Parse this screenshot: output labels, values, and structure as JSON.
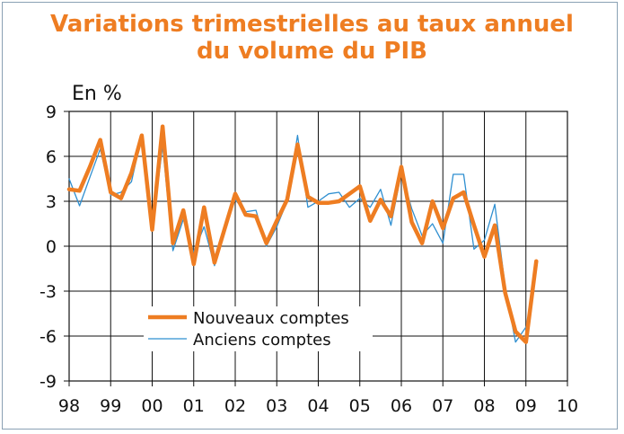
{
  "chart_data": {
    "type": "line",
    "title": [
      "Variations trimestrielles au taux annuel",
      "du volume du PIB"
    ],
    "unit": "En %",
    "ylim": [
      -9,
      9
    ],
    "yticks": [
      9,
      6,
      3,
      0,
      -3,
      -6,
      -9
    ],
    "ytick_labels": [
      "9",
      "6",
      "3",
      "0",
      "-3",
      "-6",
      "-9"
    ],
    "xlim": [
      1998,
      2010
    ],
    "xticks": [
      1998,
      1999,
      2000,
      2001,
      2002,
      2003,
      2004,
      2005,
      2006,
      2007,
      2008,
      2009,
      2010
    ],
    "xtick_labels": [
      "98",
      "99",
      "00",
      "01",
      "02",
      "03",
      "04",
      "05",
      "06",
      "07",
      "08",
      "09",
      "10"
    ],
    "grid": true,
    "legend_placement": "bottom-center",
    "series": [
      {
        "name": "Nouveaux comptes",
        "color": "#ee7d22",
        "x": [
          1998.0,
          1998.25,
          1998.5,
          1998.75,
          1999.0,
          1999.25,
          1999.5,
          1999.75,
          2000.0,
          2000.25,
          2000.5,
          2000.75,
          2001.0,
          2001.25,
          2001.5,
          2001.75,
          2002.0,
          2002.25,
          2002.5,
          2002.75,
          2003.0,
          2003.25,
          2003.5,
          2003.75,
          2004.0,
          2004.25,
          2004.5,
          2004.75,
          2005.0,
          2005.25,
          2005.5,
          2005.75,
          2006.0,
          2006.25,
          2006.5,
          2006.75,
          2007.0,
          2007.25,
          2007.5,
          2007.75,
          2008.0,
          2008.25,
          2008.5,
          2008.75,
          2009.0,
          2009.25
        ],
        "values": [
          3.8,
          3.7,
          5.3,
          7.1,
          3.6,
          3.2,
          4.9,
          7.4,
          1.1,
          8.0,
          0.2,
          2.4,
          -1.2,
          2.6,
          -1.1,
          1.2,
          3.5,
          2.1,
          2.0,
          0.2,
          1.7,
          3.1,
          6.8,
          3.3,
          2.9,
          2.9,
          3.0,
          3.5,
          4.0,
          1.7,
          3.1,
          2.0,
          5.3,
          1.6,
          0.2,
          3.0,
          1.2,
          3.2,
          3.6,
          1.4,
          -0.7,
          1.4,
          -3.1,
          -5.7,
          -6.4,
          -1.0
        ]
      },
      {
        "name": "Anciens comptes",
        "color": "#2f8fd0",
        "x": [
          1998.0,
          1998.25,
          1998.5,
          1998.75,
          1999.0,
          1999.25,
          1999.5,
          1999.75,
          2000.0,
          2000.25,
          2000.5,
          2000.75,
          2001.0,
          2001.25,
          2001.5,
          2001.75,
          2002.0,
          2002.25,
          2002.5,
          2002.75,
          2003.0,
          2003.25,
          2003.5,
          2003.75,
          2004.0,
          2004.25,
          2004.5,
          2004.75,
          2005.0,
          2005.25,
          2005.5,
          2005.75,
          2006.0,
          2006.25,
          2006.5,
          2006.75,
          2007.0,
          2007.25,
          2007.5,
          2007.75,
          2008.0,
          2008.25,
          2008.5,
          2008.75,
          2009.0
        ],
        "values": [
          4.5,
          2.7,
          4.6,
          6.5,
          3.4,
          3.6,
          4.3,
          7.4,
          1.1,
          6.7,
          -0.3,
          1.8,
          -0.4,
          1.3,
          -1.3,
          1.3,
          3.1,
          2.3,
          2.4,
          0.0,
          1.3,
          3.0,
          7.4,
          2.6,
          3.0,
          3.5,
          3.6,
          2.6,
          3.2,
          2.6,
          3.8,
          1.4,
          4.9,
          2.5,
          0.7,
          1.5,
          0.2,
          4.8,
          4.8,
          -0.2,
          0.4,
          2.8,
          -2.7,
          -6.4,
          -5.4
        ]
      }
    ]
  }
}
